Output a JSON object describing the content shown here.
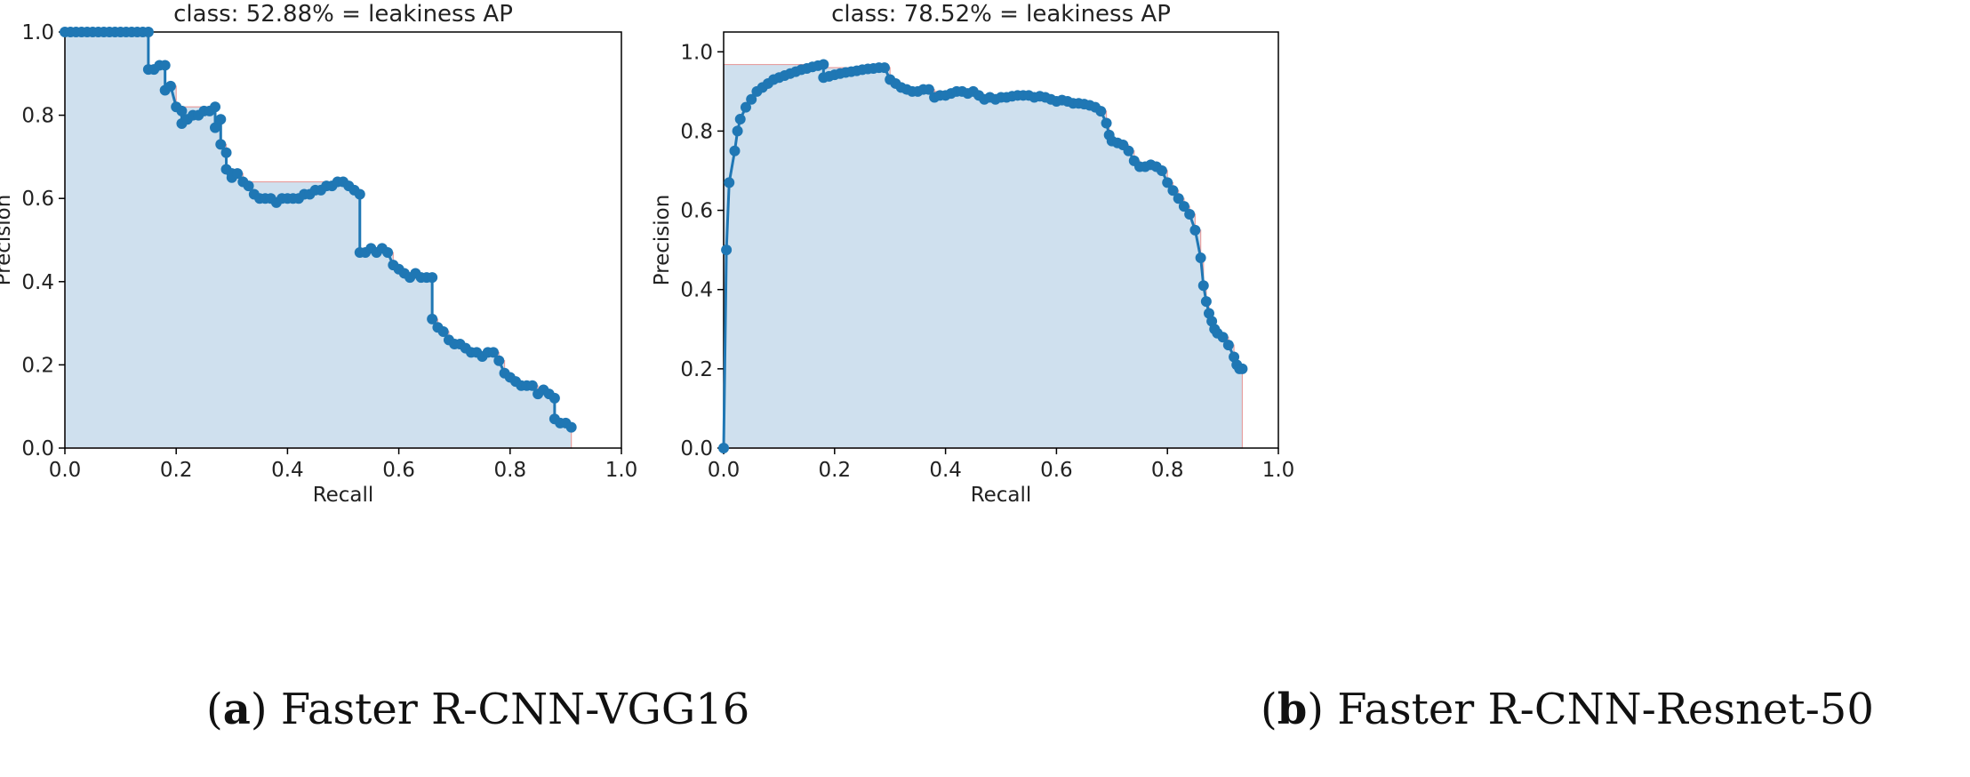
{
  "colors": {
    "line": "#1f77b4",
    "fill": "#cfe0ee",
    "interp": "#e8a0a0",
    "axes": "#000000"
  },
  "charts": [
    {
      "caption_letter": "a",
      "caption_text": " Faster R-CNN-VGG16",
      "caption_paren_open": "(",
      "caption_paren_close": ")"
    },
    {
      "caption_letter": "b",
      "caption_text": " Faster R-CNN-Resnet-50",
      "caption_paren_open": "(",
      "caption_paren_close": ")"
    }
  ],
  "chart_data": [
    {
      "type": "line",
      "title": "class: 52.88% = leakiness AP",
      "xlabel": "Recall",
      "ylabel": "Precision",
      "xlim": [
        0,
        1
      ],
      "ylim": [
        0,
        1
      ],
      "xticks": [
        "0.0",
        "0.2",
        "0.4",
        "0.6",
        "0.8",
        "1.0"
      ],
      "yticks": [
        "0.0",
        "0.2",
        "0.4",
        "0.6",
        "0.8",
        "1.0"
      ],
      "series": [
        {
          "name": "precision-recall",
          "x": [
            0.0,
            0.01,
            0.02,
            0.03,
            0.04,
            0.05,
            0.06,
            0.07,
            0.08,
            0.09,
            0.1,
            0.11,
            0.12,
            0.13,
            0.14,
            0.15,
            0.15,
            0.16,
            0.17,
            0.18,
            0.18,
            0.19,
            0.2,
            0.21,
            0.21,
            0.22,
            0.23,
            0.24,
            0.25,
            0.26,
            0.27,
            0.27,
            0.28,
            0.28,
            0.29,
            0.29,
            0.3,
            0.3,
            0.31,
            0.32,
            0.33,
            0.34,
            0.35,
            0.36,
            0.37,
            0.38,
            0.39,
            0.4,
            0.41,
            0.42,
            0.43,
            0.44,
            0.45,
            0.46,
            0.47,
            0.48,
            0.49,
            0.5,
            0.51,
            0.52,
            0.53,
            0.53,
            0.54,
            0.55,
            0.56,
            0.57,
            0.58,
            0.59,
            0.6,
            0.61,
            0.62,
            0.63,
            0.64,
            0.65,
            0.66,
            0.66,
            0.67,
            0.68,
            0.69,
            0.7,
            0.71,
            0.72,
            0.73,
            0.74,
            0.75,
            0.76,
            0.77,
            0.78,
            0.79,
            0.8,
            0.81,
            0.82,
            0.83,
            0.84,
            0.85,
            0.86,
            0.87,
            0.88,
            0.88,
            0.89,
            0.9,
            0.91
          ],
          "y": [
            1.0,
            1.0,
            1.0,
            1.0,
            1.0,
            1.0,
            1.0,
            1.0,
            1.0,
            1.0,
            1.0,
            1.0,
            1.0,
            1.0,
            1.0,
            1.0,
            0.91,
            0.91,
            0.92,
            0.92,
            0.86,
            0.87,
            0.82,
            0.81,
            0.78,
            0.79,
            0.8,
            0.8,
            0.81,
            0.81,
            0.82,
            0.77,
            0.79,
            0.73,
            0.71,
            0.67,
            0.65,
            0.66,
            0.66,
            0.64,
            0.63,
            0.61,
            0.6,
            0.6,
            0.6,
            0.59,
            0.6,
            0.6,
            0.6,
            0.6,
            0.61,
            0.61,
            0.62,
            0.62,
            0.63,
            0.63,
            0.64,
            0.64,
            0.63,
            0.62,
            0.61,
            0.47,
            0.47,
            0.48,
            0.47,
            0.48,
            0.47,
            0.44,
            0.43,
            0.42,
            0.41,
            0.42,
            0.41,
            0.41,
            0.41,
            0.31,
            0.29,
            0.28,
            0.26,
            0.25,
            0.25,
            0.24,
            0.23,
            0.23,
            0.22,
            0.23,
            0.23,
            0.21,
            0.18,
            0.17,
            0.16,
            0.15,
            0.15,
            0.15,
            0.13,
            0.14,
            0.13,
            0.12,
            0.07,
            0.06,
            0.06,
            0.05
          ]
        }
      ],
      "area_under": "interpolated",
      "area_end_x": 0.91
    },
    {
      "type": "line",
      "title": "class: 78.52% = leakiness AP",
      "xlabel": "Recall",
      "ylabel": "Precision",
      "xlim": [
        0,
        1
      ],
      "ylim": [
        0,
        1.05
      ],
      "xticks": [
        "0.0",
        "0.2",
        "0.4",
        "0.6",
        "0.8",
        "1.0"
      ],
      "yticks": [
        "0.0",
        "0.2",
        "0.4",
        "0.6",
        "0.8",
        "1.0"
      ],
      "series": [
        {
          "name": "precision-recall",
          "x": [
            0.0,
            0.005,
            0.01,
            0.02,
            0.025,
            0.03,
            0.04,
            0.05,
            0.06,
            0.07,
            0.08,
            0.09,
            0.1,
            0.11,
            0.12,
            0.13,
            0.14,
            0.15,
            0.16,
            0.17,
            0.18,
            0.18,
            0.19,
            0.2,
            0.21,
            0.22,
            0.23,
            0.24,
            0.25,
            0.26,
            0.27,
            0.28,
            0.29,
            0.3,
            0.31,
            0.32,
            0.33,
            0.34,
            0.35,
            0.36,
            0.37,
            0.38,
            0.39,
            0.4,
            0.41,
            0.42,
            0.43,
            0.44,
            0.45,
            0.46,
            0.47,
            0.48,
            0.49,
            0.5,
            0.51,
            0.52,
            0.53,
            0.54,
            0.55,
            0.56,
            0.57,
            0.58,
            0.59,
            0.6,
            0.61,
            0.62,
            0.63,
            0.64,
            0.65,
            0.66,
            0.67,
            0.68,
            0.69,
            0.695,
            0.7,
            0.71,
            0.72,
            0.73,
            0.74,
            0.75,
            0.76,
            0.77,
            0.78,
            0.79,
            0.8,
            0.81,
            0.82,
            0.83,
            0.84,
            0.85,
            0.86,
            0.865,
            0.87,
            0.875,
            0.88,
            0.885,
            0.89,
            0.9,
            0.91,
            0.92,
            0.925,
            0.93,
            0.935
          ],
          "y": [
            0.0,
            0.5,
            0.67,
            0.75,
            0.8,
            0.83,
            0.86,
            0.88,
            0.9,
            0.91,
            0.92,
            0.93,
            0.935,
            0.94,
            0.945,
            0.95,
            0.955,
            0.958,
            0.962,
            0.965,
            0.968,
            0.935,
            0.938,
            0.942,
            0.945,
            0.948,
            0.95,
            0.952,
            0.955,
            0.957,
            0.958,
            0.96,
            0.96,
            0.93,
            0.92,
            0.91,
            0.905,
            0.9,
            0.9,
            0.905,
            0.905,
            0.885,
            0.89,
            0.89,
            0.895,
            0.9,
            0.9,
            0.895,
            0.9,
            0.89,
            0.88,
            0.885,
            0.88,
            0.885,
            0.885,
            0.888,
            0.89,
            0.89,
            0.89,
            0.885,
            0.888,
            0.885,
            0.88,
            0.875,
            0.878,
            0.875,
            0.87,
            0.87,
            0.868,
            0.865,
            0.86,
            0.85,
            0.82,
            0.79,
            0.775,
            0.77,
            0.765,
            0.75,
            0.725,
            0.71,
            0.71,
            0.715,
            0.71,
            0.7,
            0.67,
            0.65,
            0.63,
            0.61,
            0.59,
            0.55,
            0.48,
            0.41,
            0.37,
            0.34,
            0.32,
            0.3,
            0.29,
            0.28,
            0.26,
            0.23,
            0.21,
            0.2,
            0.2
          ]
        }
      ],
      "area_under": "interpolated",
      "area_end_x": 0.935
    }
  ]
}
